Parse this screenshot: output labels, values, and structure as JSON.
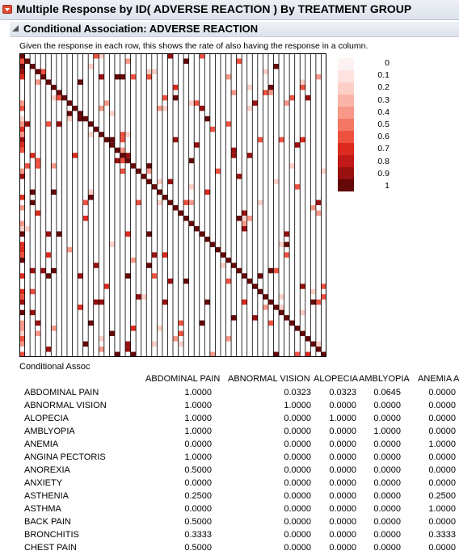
{
  "report": {
    "title": "Multiple Response by ID( ADVERSE REACTION ) By TREATMENT GROUP",
    "subtitle": "Conditional Association: ADVERSE REACTION",
    "description": "Given the response in each row, this shows the rate of also having the response in a column."
  },
  "legend": {
    "labels": [
      "0",
      "0.1",
      "0.2",
      "0.3",
      "0.4",
      "0.5",
      "0.6",
      "0.7",
      "0.8",
      "0.9",
      "1"
    ],
    "colors": [
      "#fdf2f2",
      "#fde3df",
      "#fccfc7",
      "#fbb5a8",
      "#f89888",
      "#f47766",
      "#ee5140",
      "#dc2a1e",
      "#c11818",
      "#981010",
      "#640808"
    ]
  },
  "table": {
    "title": "Conditional Assoc",
    "columns": [
      "ABDOMINAL PAIN",
      "ABNORMAL VISION",
      "ALOPECIA",
      "AMBLYOPIA",
      "ANEMIA A"
    ],
    "rows": [
      {
        "label": "ABDOMINAL PAIN",
        "values": [
          "1.0000",
          "0.0323",
          "0.0323",
          "0.0645",
          "0.0000"
        ]
      },
      {
        "label": "ABNORMAL VISION",
        "values": [
          "1.0000",
          "1.0000",
          "0.0000",
          "0.0000",
          "0.0000"
        ]
      },
      {
        "label": "ALOPECIA",
        "values": [
          "1.0000",
          "0.0000",
          "1.0000",
          "0.0000",
          "0.0000"
        ]
      },
      {
        "label": "AMBLYOPIA",
        "values": [
          "1.0000",
          "0.0000",
          "0.0000",
          "1.0000",
          "0.0000"
        ]
      },
      {
        "label": "ANEMIA",
        "values": [
          "0.0000",
          "0.0000",
          "0.0000",
          "0.0000",
          "1.0000"
        ]
      },
      {
        "label": "ANGINA PECTORIS",
        "values": [
          "1.0000",
          "0.0000",
          "0.0000",
          "0.0000",
          "0.0000"
        ]
      },
      {
        "label": "ANOREXIA",
        "values": [
          "0.5000",
          "0.0000",
          "0.0000",
          "0.0000",
          "0.0000"
        ]
      },
      {
        "label": "ANXIETY",
        "values": [
          "0.0000",
          "0.0000",
          "0.0000",
          "0.0000",
          "0.0000"
        ]
      },
      {
        "label": "ASTHENIA",
        "values": [
          "0.2500",
          "0.0000",
          "0.0000",
          "0.0000",
          "0.2500"
        ]
      },
      {
        "label": "ASTHMA",
        "values": [
          "0.0000",
          "0.0000",
          "0.0000",
          "0.0000",
          "1.0000"
        ]
      },
      {
        "label": "BACK PAIN",
        "values": [
          "0.5000",
          "0.0000",
          "0.0000",
          "0.0000",
          "0.0000"
        ]
      },
      {
        "label": "BRONCHITIS",
        "values": [
          "0.3333",
          "0.0000",
          "0.0000",
          "0.0000",
          "0.3333"
        ]
      },
      {
        "label": "CHEST PAIN",
        "values": [
          "0.5000",
          "0.0000",
          "0.0000",
          "0.0000",
          "0.0000"
        ]
      }
    ]
  }
}
